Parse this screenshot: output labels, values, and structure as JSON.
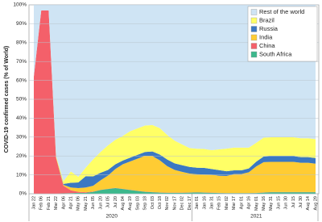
{
  "chart_data": {
    "type": "stacked-area",
    "y_label": "COVID-19 confirmed cases (% of World)",
    "categories": [
      "Jan 22",
      "Feb 06",
      "Feb 21",
      "Mar 22",
      "Apr 06",
      "Apr 21",
      "May 06",
      "May 21",
      "Jun 05",
      "Jun 20",
      "Jul 05",
      "Jul 20",
      "Aug 04",
      "Aug 19",
      "Sep 03",
      "Sep 18",
      "Oct 03",
      "Oct 18",
      "Nov 02",
      "Nov 17",
      "Dec 02",
      "Dec 17",
      "Jan 01",
      "Jan 16",
      "Jan 31",
      "Feb 15",
      "Mar 02",
      "Mar 17",
      "Apr 01",
      "Apr 16",
      "May 01",
      "May 16",
      "May 31",
      "Jun 15",
      "Jun 30",
      "Jul 15",
      "Jul 30",
      "Aug 14",
      "Aug 29"
    ],
    "x_groups": [
      {
        "label": "2020",
        "count": 22
      },
      {
        "label": "2021",
        "count": 17
      }
    ],
    "series": [
      {
        "name": "South Africa",
        "color": "#3cb88c",
        "values": [
          0,
          0,
          0,
          0,
          0.2,
          0.3,
          0.5,
          0.5,
          1,
          2,
          2.5,
          3,
          2.5,
          2,
          1.5,
          1,
          0.8,
          0.6,
          0.5,
          0.5,
          0.5,
          0.6,
          0.7,
          0.6,
          0.5,
          0.4,
          0.3,
          0.3,
          0.3,
          0.3,
          0.4,
          0.6,
          0.8,
          0.8,
          0.8,
          0.8,
          0.8,
          0.8,
          0.8
        ]
      },
      {
        "name": "China",
        "color": "#f4606a",
        "values": [
          62,
          97,
          97,
          19,
          4,
          1.5,
          0.5,
          0.3,
          0.2,
          0.1,
          0.1,
          0.1,
          0.1,
          0.1,
          0.1,
          0.1,
          0.1,
          0.1,
          0.1,
          0.1,
          0.1,
          0.1,
          0.1,
          0.1,
          0.1,
          0.1,
          0.1,
          0.1,
          0.1,
          0.1,
          0.1,
          0.1,
          0.1,
          0.1,
          0.1,
          0.1,
          0.1,
          0.1,
          0.1
        ]
      },
      {
        "name": "India",
        "color": "#ffcc33",
        "values": [
          0,
          0,
          0,
          0.5,
          0.5,
          1.5,
          2,
          2.5,
          3,
          5,
          7,
          10,
          13,
          15,
          17,
          19,
          19,
          17,
          14,
          12,
          11,
          10,
          9.5,
          9.5,
          9.5,
          9,
          9,
          10,
          10,
          11,
          14,
          16,
          16,
          16,
          16,
          16,
          15.5,
          15.5,
          15
        ]
      },
      {
        "name": "Russia",
        "color": "#3b78c2",
        "values": [
          0,
          0,
          0,
          0,
          0.5,
          2.5,
          3,
          6,
          5,
          4,
          3,
          2.5,
          2,
          2,
          2,
          2,
          2.5,
          3,
          3.5,
          3.5,
          3.5,
          3.5,
          3.5,
          3.5,
          3,
          3,
          2.5,
          2,
          2,
          2,
          2.5,
          3,
          3,
          3,
          3,
          3,
          3,
          3,
          3
        ]
      },
      {
        "name": "Brazil",
        "color": "#ffff66",
        "values": [
          0,
          0,
          0,
          0.5,
          1.5,
          6,
          3,
          4.5,
          9,
          11,
          13,
          13,
          13,
          14,
          14,
          14,
          14,
          14,
          13,
          12,
          11,
          10,
          10,
          10,
          10,
          11,
          12,
          12,
          12,
          11,
          10,
          10,
          10,
          10,
          10,
          10,
          10,
          10,
          10
        ]
      },
      {
        "name": "Rest of the world",
        "color": "#cfe4f4",
        "values": [
          38,
          3,
          3,
          80,
          93.3,
          88.2,
          91,
          86.2,
          81.8,
          77.9,
          74.4,
          71.4,
          69.4,
          66.9,
          65.4,
          63.9,
          63.6,
          65.3,
          68.9,
          71.9,
          73.9,
          75.8,
          76.2,
          76.3,
          76.9,
          76.5,
          76.1,
          75.6,
          75.6,
          75.6,
          73,
          70.3,
          70.1,
          70.1,
          70.1,
          70.1,
          70.6,
          70.6,
          71.1
        ]
      }
    ],
    "ylim": [
      0,
      100
    ],
    "yticks": [
      {
        "value": 0,
        "label": "0%"
      },
      {
        "value": 10,
        "label": "10%"
      },
      {
        "value": 20,
        "label": "20%"
      },
      {
        "value": 30,
        "label": "30%"
      },
      {
        "value": 40,
        "label": "40%"
      },
      {
        "value": 50,
        "label": "50%"
      },
      {
        "value": 60,
        "label": "60%"
      },
      {
        "value": 70,
        "label": "70%"
      },
      {
        "value": 80,
        "label": "80%"
      },
      {
        "value": 90,
        "label": "90%"
      },
      {
        "value": 100,
        "label": "100%"
      }
    ],
    "grid": true,
    "legend": "top-right"
  }
}
